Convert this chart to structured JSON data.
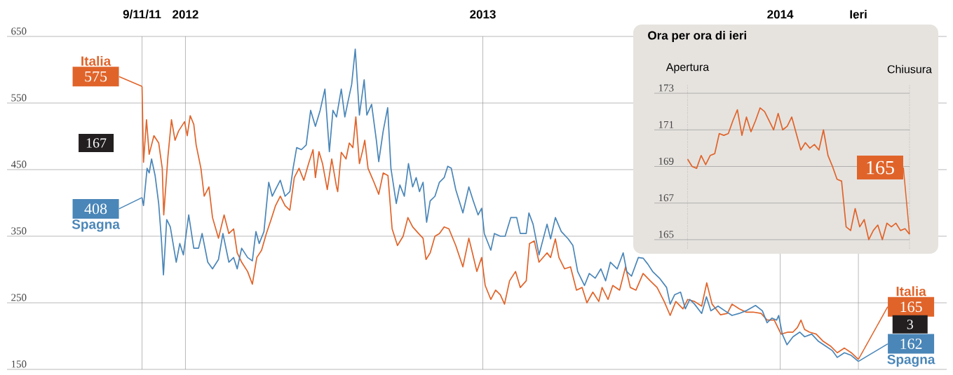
{
  "chart_data": [
    {
      "type": "line",
      "xlim": [
        2011.4,
        2014.56
      ],
      "ylim": [
        150,
        650
      ],
      "xticks": [
        {
          "value": 2011.854,
          "label": "9/11/11"
        },
        2012,
        2013,
        2014,
        {
          "value": 2014.263,
          "label": "Ieri"
        }
      ],
      "yticks": [
        150,
        250,
        350,
        450,
        550,
        650
      ],
      "grid": true,
      "annotations": [
        "167",
        "3"
      ],
      "series": [
        {
          "name": "Italia",
          "color": "#e0642a",
          "x": [
            2011.854,
            2011.859,
            2011.869,
            2011.878,
            2011.894,
            2011.91,
            2011.922,
            2011.927,
            2011.941,
            2011.953,
            2011.965,
            2011.977,
            2011.997,
            2012.006,
            2012.016,
            2012.028,
            2012.036,
            2012.052,
            2012.063,
            2012.079,
            2012.091,
            2012.111,
            2012.13,
            2012.146,
            2012.162,
            2012.174,
            2012.189,
            2012.209,
            2012.225,
            2012.24,
            2012.256,
            2012.272,
            2012.288,
            2012.303,
            2012.319,
            2012.335,
            2012.351,
            2012.366,
            2012.382,
            2012.398,
            2012.414,
            2012.429,
            2012.437,
            2012.449,
            2012.461,
            2012.477,
            2012.492,
            2012.508,
            2012.512,
            2012.524,
            2012.54,
            2012.551,
            2012.563,
            2012.573,
            2012.585,
            2012.595,
            2012.603,
            2012.614,
            2012.634,
            2012.65,
            2012.665,
            2012.681,
            2012.695,
            2012.713,
            2012.732,
            2012.748,
            2012.764,
            2012.784,
            2012.799,
            2012.809,
            2012.823,
            2012.839,
            2012.854,
            2012.87,
            2012.886,
            2012.909,
            2012.933,
            2012.953,
            2012.965,
            2012.98,
            2012.996,
            2013.008,
            2013.027,
            2013.043,
            2013.059,
            2013.073,
            2013.09,
            2013.11,
            2013.126,
            2013.146,
            2013.157,
            2013.173,
            2013.189,
            2013.216,
            2013.228,
            2013.244,
            2013.256,
            2013.275,
            2013.295,
            2013.315,
            2013.334,
            2013.35,
            2013.37,
            2013.39,
            2013.401,
            2013.421,
            2013.437,
            2013.46,
            2013.48,
            2013.496,
            2013.515,
            2013.539,
            2013.563,
            2013.586,
            2013.61,
            2013.63,
            2013.649,
            2013.673,
            2013.689,
            2013.712,
            2013.736,
            2013.753,
            2013.771,
            2013.799,
            2013.822,
            2013.838,
            2013.862,
            2013.885,
            2013.909,
            2013.936,
            2013.956,
            2013.98,
            2014.003,
            2014.027,
            2014.043,
            2014.058,
            2014.07,
            2014.082,
            2014.098,
            2014.121,
            2014.145,
            2014.169,
            2014.192,
            2014.216,
            2014.239,
            2014.263
          ],
          "values": [
            575,
            461,
            525,
            473,
            501,
            490,
            452,
            382,
            469,
            525,
            494,
            508,
            522,
            501,
            531,
            518,
            487,
            452,
            410,
            424,
            378,
            347,
            382,
            354,
            361,
            325,
            311,
            297,
            278,
            318,
            329,
            354,
            375,
            396,
            410,
            396,
            389,
            438,
            452,
            434,
            459,
            480,
            438,
            477,
            459,
            420,
            466,
            424,
            417,
            476,
            466,
            490,
            483,
            529,
            459,
            477,
            494,
            452,
            431,
            413,
            445,
            441,
            361,
            336,
            350,
            378,
            364,
            354,
            347,
            315,
            325,
            350,
            354,
            364,
            361,
            336,
            304,
            347,
            325,
            297,
            318,
            276,
            255,
            269,
            262,
            248,
            283,
            297,
            273,
            283,
            339,
            343,
            311,
            325,
            318,
            346,
            318,
            301,
            304,
            269,
            273,
            250,
            266,
            252,
            273,
            255,
            276,
            269,
            304,
            273,
            269,
            294,
            283,
            273,
            252,
            231,
            252,
            241,
            255,
            252,
            245,
            280,
            248,
            232,
            234,
            248,
            241,
            236,
            236,
            234,
            224,
            224,
            203,
            206,
            206,
            213,
            224,
            210,
            206,
            203,
            192,
            185,
            175,
            182,
            175,
            165
          ],
          "value_labels": [
            "575",
            null,
            null,
            null,
            null,
            null,
            null,
            null,
            null,
            null,
            null,
            null,
            null,
            null,
            null,
            null,
            null,
            null,
            null,
            null,
            null,
            null,
            null,
            null,
            null,
            null,
            null,
            null,
            null,
            null,
            null,
            null,
            null,
            null,
            null,
            null,
            null,
            null,
            null,
            null,
            null,
            null,
            null,
            null,
            null,
            null,
            null,
            null,
            null,
            null,
            null,
            null,
            null,
            null,
            null,
            null,
            null,
            null,
            null,
            null,
            null,
            null,
            null,
            null,
            null,
            null,
            null,
            null,
            null,
            null,
            null,
            null,
            null,
            null,
            null,
            null,
            null,
            null,
            null,
            null,
            null,
            null,
            null,
            null,
            null,
            null,
            null,
            null,
            null,
            null,
            null,
            null,
            null,
            null,
            null,
            null,
            null,
            null,
            null,
            null,
            null,
            null,
            null,
            null,
            null,
            null,
            null,
            null,
            null,
            null,
            null,
            null,
            null,
            null,
            null,
            null,
            null,
            null,
            null,
            null,
            null,
            null,
            null,
            null,
            null,
            null,
            null,
            null,
            null,
            null,
            null,
            null,
            null,
            null,
            null,
            null,
            null,
            null,
            null,
            null,
            null,
            null,
            null,
            null,
            null,
            "165"
          ]
        },
        {
          "name": "Spagna",
          "color": "#4a86b8",
          "x": [
            2011.854,
            2011.859,
            2011.871,
            2011.878,
            2011.886,
            2011.898,
            2011.91,
            2011.919,
            2011.926,
            2011.937,
            2011.949,
            2011.969,
            2011.981,
            2011.993,
            2012.011,
            2012.028,
            2012.044,
            2012.056,
            2012.075,
            2012.091,
            2012.111,
            2012.126,
            2012.146,
            2012.162,
            2012.174,
            2012.189,
            2012.209,
            2012.225,
            2012.237,
            2012.248,
            2012.264,
            2012.28,
            2012.292,
            2012.303,
            2012.319,
            2012.335,
            2012.351,
            2012.362,
            2012.374,
            2012.39,
            2012.406,
            2012.421,
            2012.437,
            2012.453,
            2012.469,
            2012.484,
            2012.496,
            2012.508,
            2012.524,
            2012.536,
            2012.547,
            2012.559,
            2012.571,
            2012.585,
            2012.601,
            2012.61,
            2012.626,
            2012.642,
            2012.65,
            2012.665,
            2012.68,
            2012.691,
            2012.709,
            2012.721,
            2012.736,
            2012.75,
            2012.764,
            2012.776,
            2012.787,
            2012.799,
            2012.811,
            2012.823,
            2012.839,
            2012.854,
            2012.87,
            2012.882,
            2012.894,
            2012.909,
            2012.933,
            2012.953,
            2012.968,
            2012.984,
            2012.996,
            2013.005,
            2013.027,
            2013.039,
            2013.059,
            2013.075,
            2013.094,
            2013.114,
            2013.126,
            2013.146,
            2013.155,
            2013.169,
            2013.189,
            2013.216,
            2013.228,
            2013.244,
            2013.264,
            2013.287,
            2013.303,
            2013.319,
            2013.342,
            2013.358,
            2013.378,
            2013.397,
            2013.413,
            2013.429,
            2013.452,
            2013.472,
            2013.484,
            2013.5,
            2013.523,
            2013.539,
            2013.555,
            2013.571,
            2013.594,
            2013.618,
            2013.63,
            2013.645,
            2013.665,
            2013.681,
            2013.696,
            2013.712,
            2013.736,
            2013.752,
            2013.767,
            2013.791,
            2013.814,
            2013.838,
            2013.862,
            2013.885,
            2013.917,
            2013.94,
            2013.956,
            2013.972,
            2013.988,
            2013.995,
            2014.007,
            2014.023,
            2014.043,
            2014.066,
            2014.082,
            2014.106,
            2014.129,
            2014.153,
            2014.176,
            2014.192,
            2014.216,
            2014.239,
            2014.263
          ],
          "values": [
            408,
            396,
            452,
            445,
            466,
            441,
            399,
            346,
            292,
            375,
            364,
            311,
            339,
            322,
            382,
            332,
            332,
            354,
            311,
            301,
            315,
            354,
            311,
            318,
            301,
            332,
            318,
            313,
            357,
            339,
            357,
            431,
            410,
            420,
            434,
            410,
            417,
            452,
            483,
            480,
            487,
            539,
            515,
            539,
            571,
            477,
            539,
            529,
            571,
            529,
            553,
            578,
            631,
            532,
            585,
            532,
            548,
            494,
            462,
            508,
            543,
            452,
            399,
            427,
            410,
            459,
            424,
            438,
            417,
            431,
            371,
            403,
            410,
            431,
            438,
            455,
            452,
            420,
            385,
            424,
            403,
            382,
            392,
            354,
            329,
            354,
            350,
            350,
            378,
            378,
            354,
            354,
            385,
            368,
            322,
            368,
            346,
            378,
            357,
            346,
            336,
            297,
            276,
            294,
            287,
            301,
            283,
            311,
            301,
            325,
            297,
            290,
            318,
            317,
            308,
            297,
            287,
            273,
            248,
            262,
            266,
            241,
            255,
            248,
            234,
            259,
            238,
            245,
            238,
            231,
            234,
            238,
            246,
            238,
            220,
            227,
            224,
            231,
            203,
            187,
            199,
            206,
            199,
            203,
            192,
            185,
            178,
            168,
            175,
            171,
            162
          ],
          "value_labels": [
            "408",
            null,
            null,
            null,
            null,
            null,
            null,
            null,
            null,
            null,
            null,
            null,
            null,
            null,
            null,
            null,
            null,
            null,
            null,
            null,
            null,
            null,
            null,
            null,
            null,
            null,
            null,
            null,
            null,
            null,
            null,
            null,
            null,
            null,
            null,
            null,
            null,
            null,
            null,
            null,
            null,
            null,
            null,
            null,
            null,
            null,
            null,
            null,
            null,
            null,
            null,
            null,
            null,
            null,
            null,
            null,
            null,
            null,
            null,
            null,
            null,
            null,
            null,
            null,
            null,
            null,
            null,
            null,
            null,
            null,
            null,
            null,
            null,
            null,
            null,
            null,
            null,
            null,
            null,
            null,
            null,
            null,
            null,
            null,
            null,
            null,
            null,
            null,
            null,
            null,
            null,
            null,
            null,
            null,
            null,
            null,
            null,
            null,
            null,
            null,
            null,
            null,
            null,
            null,
            null,
            null,
            null,
            null,
            null,
            null,
            null,
            null,
            null,
            null,
            null,
            null,
            null,
            null,
            null,
            null,
            null,
            null,
            null,
            null,
            null,
            null,
            null,
            null,
            null,
            null,
            null,
            null,
            null,
            null,
            null,
            null,
            null,
            null,
            null,
            null,
            null,
            null,
            null,
            null,
            null,
            null,
            null,
            null,
            null,
            null,
            "162"
          ]
        }
      ]
    },
    {
      "type": "line",
      "title": "Ora per ora di ieri",
      "categories": [
        "Apertura",
        null,
        null,
        null,
        null,
        null,
        null,
        null,
        null,
        null,
        null,
        null,
        null,
        null,
        null,
        null,
        null,
        null,
        null,
        null,
        null,
        null,
        null,
        null,
        null,
        null,
        null,
        null,
        null,
        null,
        null,
        null,
        null,
        null,
        null,
        null,
        null,
        null,
        null,
        null,
        null,
        null,
        null,
        null,
        null,
        null,
        null,
        null,
        null,
        "Chiusura"
      ],
      "ylim": [
        164.5,
        173.5
      ],
      "yticks": [
        165,
        167,
        169,
        171,
        173
      ],
      "grid": true,
      "series": [
        {
          "color": "#e0642a",
          "values": [
            169.4,
            169.0,
            168.9,
            169.6,
            169.1,
            169.6,
            169.7,
            170.8,
            170.7,
            170.8,
            171.5,
            172.1,
            170.7,
            171.7,
            170.9,
            171.5,
            172.2,
            172.0,
            171.5,
            171.0,
            171.9,
            171.0,
            171.2,
            171.7,
            170.8,
            169.9,
            170.3,
            170.0,
            170.2,
            169.9,
            171.0,
            169.6,
            169.0,
            168.3,
            168.2,
            165.7,
            165.5,
            166.7,
            165.7,
            166.1,
            165.0,
            165.5,
            165.8,
            165.0,
            165.9,
            165.7,
            165.9,
            165.5,
            165.6,
            165.3
          ],
          "value_labels": [
            null,
            null,
            null,
            null,
            null,
            null,
            null,
            null,
            null,
            null,
            null,
            null,
            null,
            null,
            null,
            null,
            null,
            null,
            null,
            null,
            null,
            null,
            null,
            null,
            null,
            null,
            null,
            null,
            null,
            null,
            null,
            null,
            null,
            null,
            null,
            null,
            null,
            null,
            null,
            null,
            null,
            null,
            null,
            null,
            null,
            null,
            null,
            null,
            null,
            "165"
          ]
        }
      ]
    }
  ]
}
